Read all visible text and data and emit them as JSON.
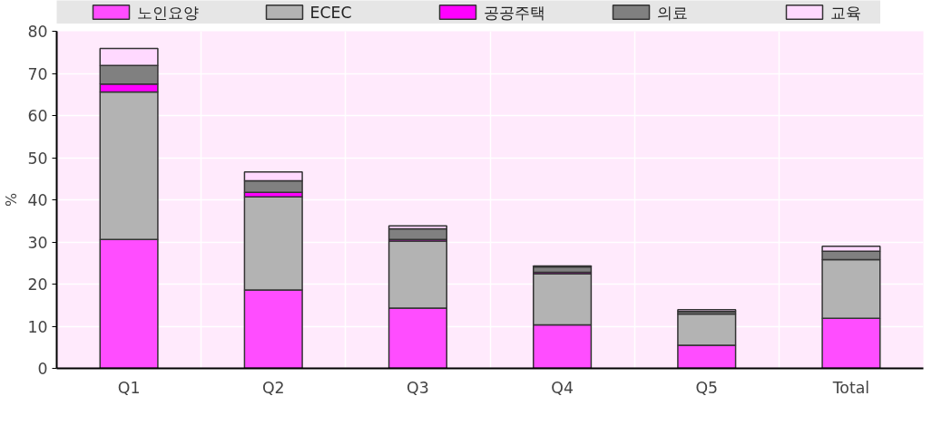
{
  "chart_data": {
    "type": "bar",
    "stacked": true,
    "ylabel": "%",
    "categories": [
      "Q1",
      "Q2",
      "Q3",
      "Q4",
      "Q5",
      "Total"
    ],
    "series": [
      {
        "name": "노인요양",
        "color": "#ff4dff",
        "values": [
          30.6,
          18.6,
          14.3,
          10.3,
          5.5,
          11.9
        ]
      },
      {
        "name": "ECEC",
        "color": "#b3b3b3",
        "values": [
          35.0,
          22.1,
          15.9,
          12.1,
          7.4,
          13.9
        ]
      },
      {
        "name": "공공주택",
        "color": "#ff00ff",
        "values": [
          1.9,
          1.1,
          0.4,
          0.4,
          null,
          null
        ]
      },
      {
        "name": "의료",
        "color": "#808080",
        "values": [
          4.4,
          2.7,
          2.5,
          1.3,
          0.6,
          2.0
        ]
      },
      {
        "name": "교육",
        "color": "#ffd9ff",
        "values": [
          4.0,
          2.1,
          0.7,
          0.2,
          0.4,
          1.2
        ]
      }
    ],
    "ylim": [
      0,
      80
    ],
    "yticks": [
      0,
      10,
      20,
      30,
      40,
      50,
      60,
      70,
      80
    ],
    "grid": true,
    "legend": "top"
  }
}
